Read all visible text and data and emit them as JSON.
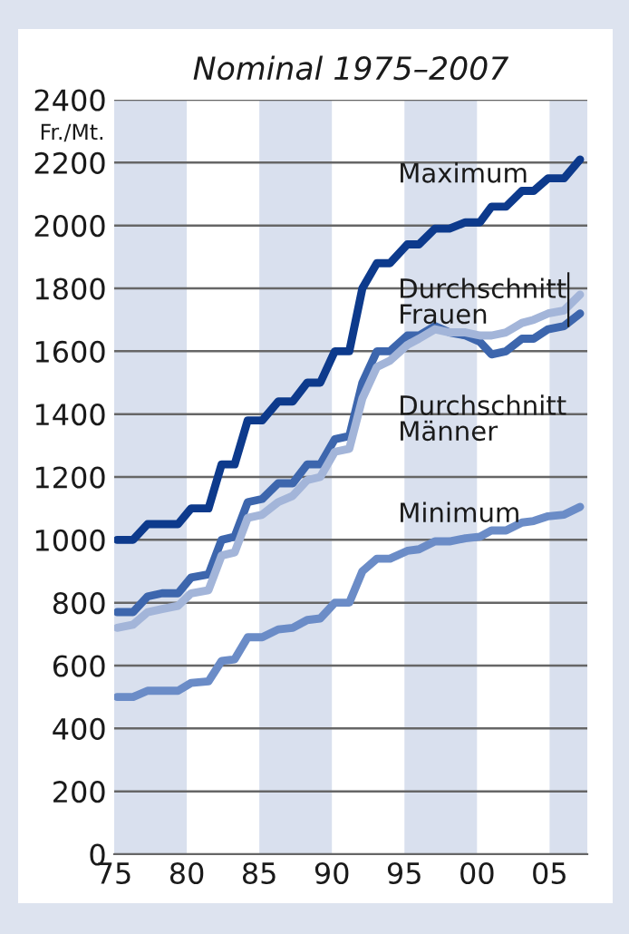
{
  "chart_data": {
    "type": "line",
    "title": "Nominal 1975–2007",
    "ylabel": "Fr./Mt.",
    "x": [
      1975.2,
      1976.3,
      1977.3,
      1978.3,
      1979.4,
      1980.3,
      1981.5,
      1982.4,
      1983.3,
      1984.2,
      1985.2,
      1986.3,
      1987.3,
      1988.3,
      1989.2,
      1990.2,
      1991.2,
      1992.1,
      1993.1,
      1994.0,
      1995.2,
      1996.0,
      1997.1,
      1998.1,
      1999.2,
      2000.2,
      2001.0,
      2002.0,
      2003.1,
      2003.9,
      2004.9,
      2006.0,
      2007.1
    ],
    "series": [
      {
        "name": "Maximum",
        "color": "#0d3a8c",
        "values": [
          1000,
          1000,
          1050,
          1050,
          1050,
          1100,
          1100,
          1240,
          1240,
          1380,
          1380,
          1440,
          1440,
          1500,
          1500,
          1600,
          1600,
          1800,
          1880,
          1880,
          1940,
          1940,
          1990,
          1990,
          2010,
          2010,
          2060,
          2060,
          2110,
          2110,
          2150,
          2150,
          2210
        ]
      },
      {
        "name": "Durchschnitt Frauen",
        "color": "#a3b5d9",
        "values": [
          720,
          730,
          770,
          780,
          790,
          830,
          840,
          950,
          960,
          1070,
          1080,
          1120,
          1140,
          1190,
          1200,
          1280,
          1290,
          1450,
          1550,
          1570,
          1620,
          1640,
          1670,
          1660,
          1660,
          1650,
          1650,
          1660,
          1690,
          1700,
          1720,
          1730,
          1780
        ]
      },
      {
        "name": "Durchschnitt Männer",
        "color": "#3d66ad",
        "values": [
          770,
          770,
          820,
          830,
          830,
          880,
          890,
          1000,
          1010,
          1120,
          1130,
          1180,
          1180,
          1240,
          1240,
          1320,
          1330,
          1500,
          1600,
          1600,
          1650,
          1650,
          1680,
          1660,
          1650,
          1630,
          1590,
          1600,
          1640,
          1640,
          1670,
          1680,
          1720
        ]
      },
      {
        "name": "Minimum",
        "color": "#6b8cc7",
        "values": [
          500,
          500,
          520,
          520,
          520,
          545,
          550,
          615,
          620,
          690,
          690,
          715,
          720,
          745,
          750,
          800,
          800,
          900,
          940,
          940,
          965,
          970,
          995,
          995,
          1005,
          1010,
          1030,
          1030,
          1055,
          1060,
          1075,
          1080,
          1105
        ]
      }
    ],
    "xlim": [
      1975,
      2007.6
    ],
    "ylim": [
      0,
      2400
    ],
    "xticks": [
      {
        "value": 1975,
        "label": "75"
      },
      {
        "value": 1980,
        "label": "80"
      },
      {
        "value": 1985,
        "label": "85"
      },
      {
        "value": 1990,
        "label": "90"
      },
      {
        "value": 1995,
        "label": "95"
      },
      {
        "value": 2000,
        "label": "00"
      },
      {
        "value": 2005,
        "label": "05"
      }
    ],
    "yticks": [
      0,
      200,
      400,
      600,
      800,
      1000,
      1200,
      1400,
      1600,
      1800,
      2000,
      2200,
      2400
    ],
    "bands": [
      {
        "axis": "x",
        "from": 1975,
        "to": 1980,
        "color": "#d9e0ee"
      },
      {
        "axis": "x",
        "from": 1985,
        "to": 1990,
        "color": "#d9e0ee"
      },
      {
        "axis": "x",
        "from": 1995,
        "to": 2000,
        "color": "#d9e0ee"
      },
      {
        "axis": "x",
        "from": 2005,
        "to": 2007.6,
        "color": "#d9e0ee"
      }
    ],
    "grid": "y",
    "line_style": "solid",
    "marker": "none",
    "legend": false
  }
}
